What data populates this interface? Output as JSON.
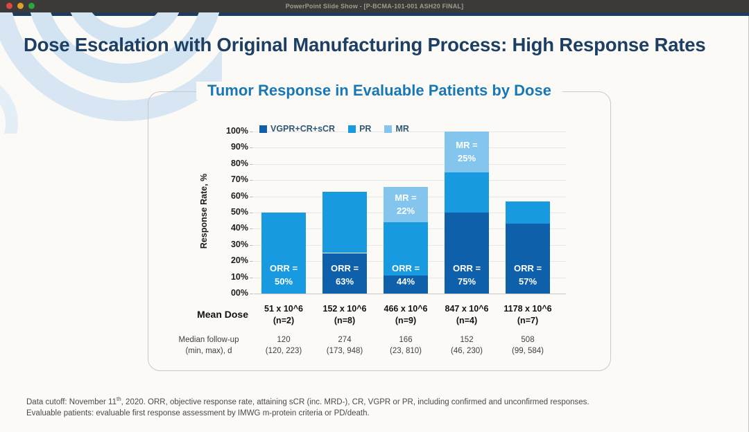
{
  "window": {
    "title": "PowerPoint Slide Show - [P-BCMA-101-001 ASH20 FINAL]",
    "traffic_lights": {
      "close": "#df4840",
      "minimize": "#dfa023",
      "zoom": "#2aa73a"
    }
  },
  "slide": {
    "title": "Dose Escalation with Original Manufacturing Process: High Response Rates",
    "footnote": {
      "line1_pre": "Data cutoff: November 11",
      "line1_sup": "th",
      "line1_post": ", 2020. ORR, objective response rate, attaining sCR (inc. MRD-), CR, VGPR or PR, including confirmed and unconfirmed responses.",
      "line2": "Evaluable patients: evaluable first response assessment by IMWG m-protein criteria or PD/death."
    }
  },
  "chart_data": {
    "type": "bar",
    "stacked": true,
    "title": "Tumor Response in Evaluable Patients by Dose",
    "ylabel": "Response Rate, %",
    "ylim": [
      0,
      100
    ],
    "grid": true,
    "legend_position": "top",
    "ytick_labels": [
      "100%",
      "90%",
      "80%",
      "70%",
      "60%",
      "50%",
      "40%",
      "30%",
      "20%",
      "10%",
      "00%"
    ],
    "legend": [
      {
        "name": "VGPR+CR+sCR",
        "color": "#0e60ab"
      },
      {
        "name": "PR",
        "color": "#189ae1"
      },
      {
        "name": "MR",
        "color": "#84c5ed"
      }
    ],
    "x_header": "Mean Dose",
    "categories": [
      "51 x 10^6",
      "152 x 10^6",
      "466 x 10^6",
      "847 x 10^6",
      "1178 x 10^6"
    ],
    "n_labels": [
      "(n=2)",
      "(n=8)",
      "(n=9)",
      "(n=4)",
      "(n=7)"
    ],
    "series": [
      {
        "name": "VGPR+CR+sCR",
        "color": "#0e60ab",
        "values": [
          0,
          25,
          11,
          50,
          43
        ]
      },
      {
        "name": "PR",
        "color": "#189ae1",
        "values": [
          50,
          38,
          33,
          25,
          14
        ]
      },
      {
        "name": "MR",
        "color": "#84c5ed",
        "values": [
          0,
          0,
          22,
          25,
          0
        ]
      }
    ],
    "orr_values": [
      50,
      63,
      44,
      75,
      57
    ],
    "orr_labels": [
      [
        "ORR =",
        "50%"
      ],
      [
        "ORR =",
        "63%"
      ],
      [
        "ORR =",
        "44%"
      ],
      [
        "ORR =",
        "75%"
      ],
      [
        "ORR =",
        "57%"
      ]
    ],
    "mr_labels": [
      null,
      null,
      [
        "MR =",
        "22%"
      ],
      [
        "MR =",
        "25%"
      ],
      null
    ],
    "row2_header": [
      "Median follow-up",
      "(min, max), d"
    ],
    "row2_values": [
      [
        "120",
        "(120, 223)"
      ],
      [
        "274",
        "(173, 948)"
      ],
      [
        "166",
        "(23, 810)"
      ],
      [
        "152",
        "(46, 230)"
      ],
      [
        "508",
        "(99, 584)"
      ]
    ]
  }
}
